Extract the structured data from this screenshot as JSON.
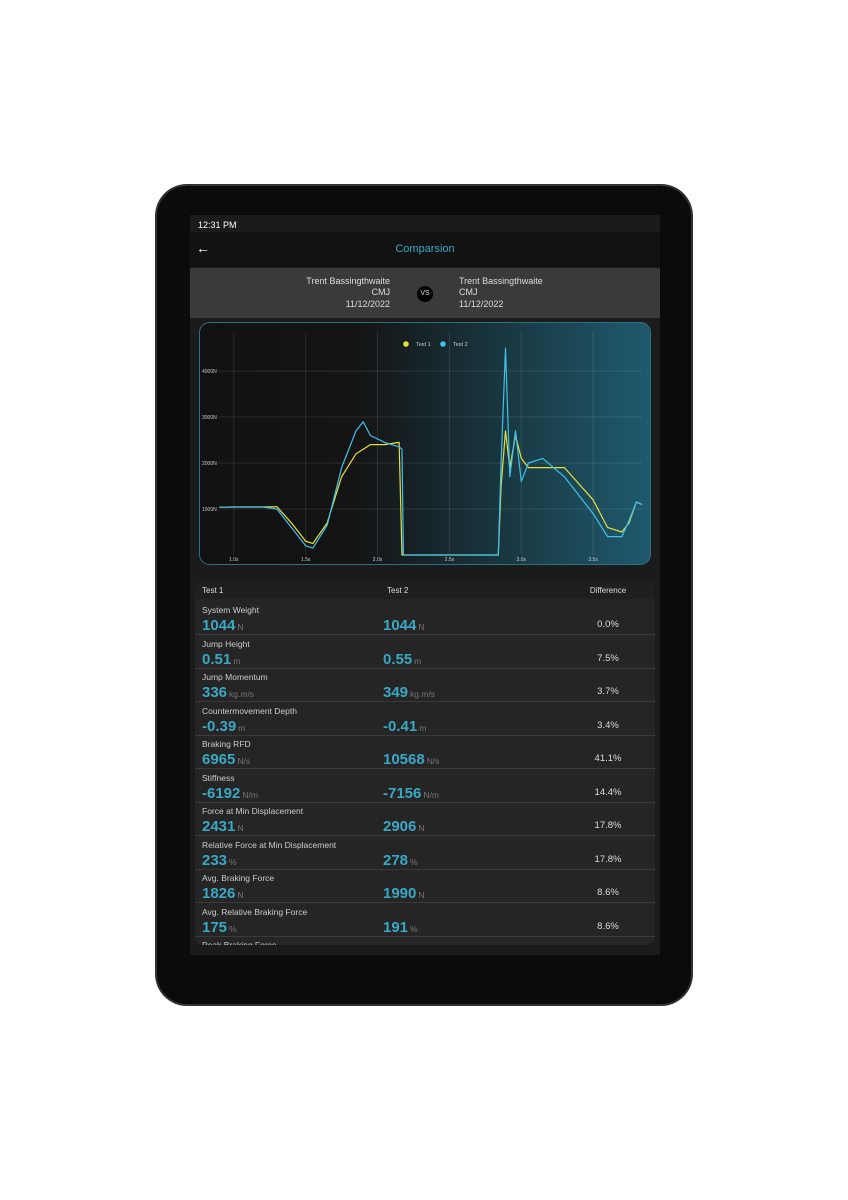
{
  "status_bar": {
    "time": "12:31 PM"
  },
  "header": {
    "title": "Comparsion"
  },
  "compare": {
    "left": {
      "name": "Trent Bassingthwaite",
      "test": "CMJ",
      "date": "11/12/2022"
    },
    "vs": "VS",
    "right": {
      "name": "Trent Bassingthwaite",
      "test": "CMJ",
      "date": "11/12/2022"
    }
  },
  "chart": {
    "type": "line",
    "x": [
      0.9,
      1.0,
      1.2,
      1.3,
      1.4,
      1.5,
      1.55,
      1.65,
      1.75,
      1.85,
      1.9,
      1.95,
      2.05,
      2.15,
      2.17,
      2.18,
      2.5,
      2.84,
      2.86,
      2.89,
      2.92,
      2.96,
      3.0,
      3.05,
      3.15,
      3.3,
      3.5,
      3.6,
      3.7,
      3.75,
      3.8,
      3.84
    ],
    "series": [
      {
        "name": "Test 1",
        "color": "#e6df3c",
        "values": [
          1040,
          1044,
          1044,
          1050,
          700,
          300,
          250,
          700,
          1700,
          2200,
          2300,
          2400,
          2400,
          2450,
          0,
          0,
          0,
          0,
          1500,
          2700,
          1900,
          2600,
          2100,
          1900,
          1900,
          1900,
          1200,
          600,
          500,
          700,
          1150,
          1100
        ]
      },
      {
        "name": "Test 2",
        "color": "#41c0ea",
        "values": [
          1040,
          1044,
          1044,
          1000,
          600,
          200,
          150,
          650,
          1900,
          2700,
          2900,
          2600,
          2450,
          2350,
          2300,
          0,
          0,
          0,
          2000,
          4500,
          1700,
          2700,
          1600,
          2000,
          2100,
          1700,
          900,
          400,
          400,
          750,
          1150,
          1100
        ]
      }
    ],
    "xlim": [
      0.89,
      3.84
    ],
    "ylim": [
      0,
      4850
    ],
    "xticks": [
      {
        "value": 1,
        "label": "1.0s"
      },
      {
        "value": 1.5,
        "label": "1.5s"
      },
      {
        "value": 2,
        "label": "2.0s"
      },
      {
        "value": 2.5,
        "label": "2.5s"
      },
      {
        "value": 3,
        "label": "3.0s"
      },
      {
        "value": 3.5,
        "label": "3.5s"
      }
    ],
    "yticks": [
      {
        "value": 1000,
        "label": "1000N"
      },
      {
        "value": 2000,
        "label": "2000N"
      },
      {
        "value": 3000,
        "label": "3000N"
      },
      {
        "value": 4000,
        "label": "4000N"
      }
    ],
    "grid": true,
    "legend": "top"
  },
  "table": {
    "columns": [
      "Test 1",
      "Test 2",
      "Difference"
    ],
    "rows": [
      {
        "label": "System Weight",
        "v1": "1044",
        "u1": "N",
        "v2": "1044",
        "u2": "N",
        "diff": "0.0%"
      },
      {
        "label": "Jump Height",
        "v1": "0.51",
        "u1": "m",
        "v2": "0.55",
        "u2": "m",
        "diff": "7.5%"
      },
      {
        "label": "Jump Momentum",
        "v1": "336",
        "u1": "kg.m/s",
        "v2": "349",
        "u2": "kg.m/s",
        "diff": "3.7%"
      },
      {
        "label": "Countermovement Depth",
        "v1": "-0.39",
        "u1": "m",
        "v2": "-0.41",
        "u2": "m",
        "diff": "3.4%"
      },
      {
        "label": "Braking RFD",
        "v1": "6965",
        "u1": "N/s",
        "v2": "10568",
        "u2": "N/s",
        "diff": "41.1%"
      },
      {
        "label": "Stiffness",
        "v1": "-6192",
        "u1": "N/m",
        "v2": "-7156",
        "u2": "N/m",
        "diff": "14.4%"
      },
      {
        "label": "Force at Min Displacement",
        "v1": "2431",
        "u1": "N",
        "v2": "2906",
        "u2": "N",
        "diff": "17.8%"
      },
      {
        "label": "Relative Force at Min Displacement",
        "v1": "233",
        "u1": "%",
        "v2": "278",
        "u2": "%",
        "diff": "17.8%"
      },
      {
        "label": "Avg. Braking Force",
        "v1": "1826",
        "u1": "N",
        "v2": "1990",
        "u2": "N",
        "diff": "8.6%"
      },
      {
        "label": "Avg. Relative Braking Force",
        "v1": "175",
        "u1": "%",
        "v2": "191",
        "u2": "%",
        "diff": "8.6%"
      }
    ],
    "next_label": "Peak Braking Force"
  }
}
